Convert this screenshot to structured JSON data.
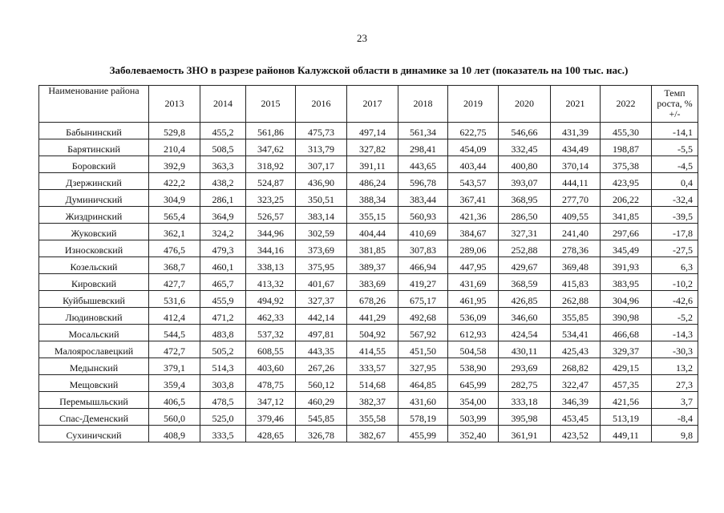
{
  "page_number": "23",
  "title": "Заболеваемость ЗНО в разрезе районов Калужской области в динамике за 10 лет (показатель на 100 тыс. нас.)",
  "table": {
    "header": [
      "Наименование района",
      "2013",
      "2014",
      "2015",
      "2016",
      "2017",
      "2018",
      "2019",
      "2020",
      "2021",
      "2022",
      "Темп роста, % +/-"
    ],
    "rows": [
      [
        "Бабынинский",
        "529,8",
        "455,2",
        "561,86",
        "475,73",
        "497,14",
        "561,34",
        "622,75",
        "546,66",
        "431,39",
        "455,30",
        "-14,1"
      ],
      [
        "Барятинский",
        "210,4",
        "508,5",
        "347,62",
        "313,79",
        "327,82",
        "298,41",
        "454,09",
        "332,45",
        "434,49",
        "198,87",
        "-5,5"
      ],
      [
        "Боровский",
        "392,9",
        "363,3",
        "318,92",
        "307,17",
        "391,11",
        "443,65",
        "403,44",
        "400,80",
        "370,14",
        "375,38",
        "-4,5"
      ],
      [
        "Дзержинский",
        "422,2",
        "438,2",
        "524,87",
        "436,90",
        "486,24",
        "596,78",
        "543,57",
        "393,07",
        "444,11",
        "423,95",
        "0,4"
      ],
      [
        "Думиничский",
        "304,9",
        "286,1",
        "323,25",
        "350,51",
        "388,34",
        "383,44",
        "367,41",
        "368,95",
        "277,70",
        "206,22",
        "-32,4"
      ],
      [
        "Жиздринский",
        "565,4",
        "364,9",
        "526,57",
        "383,14",
        "355,15",
        "560,93",
        "421,36",
        "286,50",
        "409,55",
        "341,85",
        "-39,5"
      ],
      [
        "Жуковский",
        "362,1",
        "324,2",
        "344,96",
        "302,59",
        "404,44",
        "410,69",
        "384,67",
        "327,31",
        "241,40",
        "297,66",
        "-17,8"
      ],
      [
        "Износковский",
        "476,5",
        "479,3",
        "344,16",
        "373,69",
        "381,85",
        "307,83",
        "289,06",
        "252,88",
        "278,36",
        "345,49",
        "-27,5"
      ],
      [
        "Козельский",
        "368,7",
        "460,1",
        "338,13",
        "375,95",
        "389,37",
        "466,94",
        "447,95",
        "429,67",
        "369,48",
        "391,93",
        "6,3"
      ],
      [
        "Кировский",
        "427,7",
        "465,7",
        "413,32",
        "401,67",
        "383,69",
        "419,27",
        "431,69",
        "368,59",
        "415,83",
        "383,95",
        "-10,2"
      ],
      [
        "Куйбышевский",
        "531,6",
        "455,9",
        "494,92",
        "327,37",
        "678,26",
        "675,17",
        "461,95",
        "426,85",
        "262,88",
        "304,96",
        "-42,6"
      ],
      [
        "Людиновский",
        "412,4",
        "471,2",
        "462,33",
        "442,14",
        "441,29",
        "492,68",
        "536,09",
        "346,60",
        "355,85",
        "390,98",
        "-5,2"
      ],
      [
        "Мосальский",
        "544,5",
        "483,8",
        "537,32",
        "497,81",
        "504,92",
        "567,92",
        "612,93",
        "424,54",
        "534,41",
        "466,68",
        "-14,3"
      ],
      [
        "Малоярославецкий",
        "472,7",
        "505,2",
        "608,55",
        "443,35",
        "414,55",
        "451,50",
        "504,58",
        "430,11",
        "425,43",
        "329,37",
        "-30,3"
      ],
      [
        "Медынский",
        "379,1",
        "514,3",
        "403,60",
        "267,26",
        "333,57",
        "327,95",
        "538,90",
        "293,69",
        "268,82",
        "429,15",
        "13,2"
      ],
      [
        "Мещовский",
        "359,4",
        "303,8",
        "478,75",
        "560,12",
        "514,68",
        "464,85",
        "645,99",
        "282,75",
        "322,47",
        "457,35",
        "27,3"
      ],
      [
        "Перемышльский",
        "406,5",
        "478,5",
        "347,12",
        "460,29",
        "382,37",
        "431,60",
        "354,00",
        "333,18",
        "346,39",
        "421,56",
        "3,7"
      ],
      [
        "Спас-Деменский",
        "560,0",
        "525,0",
        "379,46",
        "545,85",
        "355,58",
        "578,19",
        "503,99",
        "395,98",
        "453,45",
        "513,19",
        "-8,4"
      ],
      [
        "Сухиничский",
        "408,9",
        "333,5",
        "428,65",
        "326,78",
        "382,67",
        "455,99",
        "352,40",
        "361,91",
        "423,52",
        "449,11",
        "9,8"
      ]
    ]
  }
}
